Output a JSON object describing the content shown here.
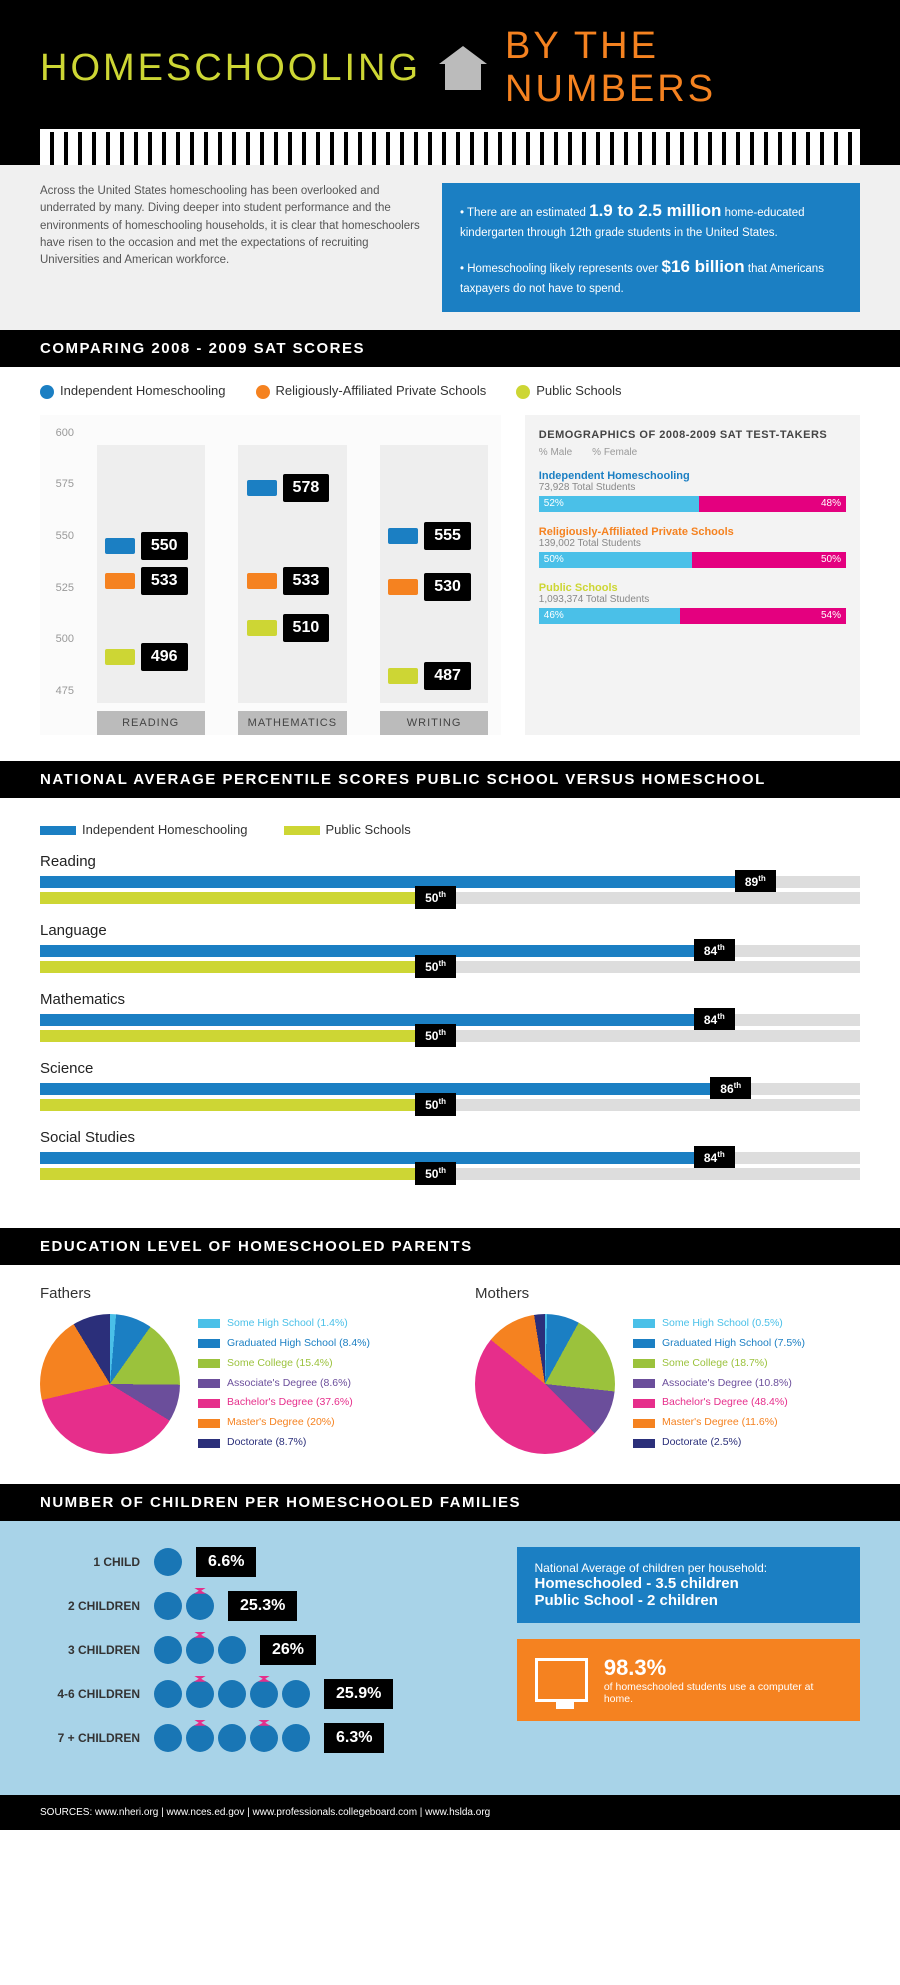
{
  "title": {
    "left": "HOMESCHOOLING",
    "right": "BY THE NUMBERS"
  },
  "intro": {
    "left": "Across the United States homeschooling has been overlooked and underrated by many. Diving deeper into student performance and the environments of homeschooling households, it is clear that homeschoolers have risen to the occasion and met the expectations of recruiting Universities and American workforce.",
    "right1_pre": "• There are an estimated",
    "right1_big": "1.9 to 2.5 million",
    "right1_post": "home-educated kindergarten through 12th grade students in the United States.",
    "right2_pre": "• Homeschooling likely represents over",
    "right2_big": "$16 billion",
    "right2_post": "that Americans taxpayers do not have to spend."
  },
  "sat": {
    "header": "COMPARING 2008 - 2009 SAT SCORES",
    "series": [
      {
        "name": "Independent Homeschooling",
        "color": "#1b7fc3"
      },
      {
        "name": "Religiously-Affiliated Private Schools",
        "color": "#f58220"
      },
      {
        "name": "Public Schools",
        "color": "#cdd634"
      }
    ],
    "ymin": 475,
    "ymax": 600,
    "ystep": 25,
    "cats": [
      "READING",
      "MATHEMATICS",
      "WRITING"
    ],
    "data": [
      [
        550,
        533,
        496
      ],
      [
        578,
        533,
        510
      ],
      [
        555,
        530,
        487
      ]
    ]
  },
  "demo": {
    "header": "DEMOGRAPHICS OF 2008-2009 SAT TEST-TAKERS",
    "sub": [
      "% Male",
      "% Female"
    ],
    "groups": [
      {
        "name": "Independent Homeschooling",
        "color": "#1b7fc3",
        "total": "73,928 Total Students",
        "m": 52,
        "f": 48
      },
      {
        "name": "Religiously-Affiliated Private Schools",
        "color": "#f58220",
        "total": "139,002 Total Students",
        "m": 50,
        "f": 50
      },
      {
        "name": "Public Schools",
        "color": "#cdd634",
        "total": "1,093,374 Total Students",
        "m": 46,
        "f": 54
      }
    ]
  },
  "pct": {
    "header": "NATIONAL AVERAGE PERCENTILE SCORES PUBLIC SCHOOL VERSUS HOMESCHOOL",
    "series": [
      {
        "name": "Independent Homeschooling",
        "color": "#1b7fc3"
      },
      {
        "name": "Public Schools",
        "color": "#cdd634"
      }
    ],
    "rows": [
      {
        "label": "Reading",
        "hs": 89,
        "ps": 50
      },
      {
        "label": "Language",
        "hs": 84,
        "ps": 50
      },
      {
        "label": "Mathematics",
        "hs": 84,
        "ps": 50
      },
      {
        "label": "Science",
        "hs": 86,
        "ps": 50
      },
      {
        "label": "Social Studies",
        "hs": 84,
        "ps": 50
      }
    ]
  },
  "edu": {
    "header": "EDUCATION LEVEL OF HOMESCHOOLED PARENTS",
    "colors": [
      "#4ac0e8",
      "#1b7fc3",
      "#9bc23c",
      "#6b4e9b",
      "#e62e8b",
      "#f58220",
      "#2b2f7a"
    ],
    "labels": [
      "Some High School",
      "Graduated High School",
      "Some College",
      "Associate's Degree",
      "Bachelor's Degree",
      "Master's Degree",
      "Doctorate"
    ],
    "fathers": {
      "title": "Fathers",
      "values": [
        1.4,
        8.4,
        15.4,
        8.6,
        37.6,
        20,
        8.7
      ]
    },
    "mothers": {
      "title": "Mothers",
      "values": [
        0.5,
        7.5,
        18.7,
        10.8,
        48.4,
        11.6,
        2.5
      ]
    }
  },
  "children": {
    "header": "NUMBER OF CHILDREN PER HOMESCHOOLED FAMILIES",
    "rows": [
      {
        "label": "1 CHILD",
        "icons": 1,
        "pct": 6.6
      },
      {
        "label": "2 CHILDREN",
        "icons": 2,
        "pct": 25.3
      },
      {
        "label": "3 CHILDREN",
        "icons": 3,
        "pct": 26
      },
      {
        "label": "4-6 CHILDREN",
        "icons": 5,
        "pct": 25.9
      },
      {
        "label": "7 + CHILDREN",
        "icons": 5,
        "pct": 6.3
      }
    ],
    "avg": {
      "title": "National Average of children per household:",
      "line1": "Homeschooled - 3.5 children",
      "line2": "Public School - 2 children"
    },
    "comp": {
      "pct": "98.3%",
      "txt": "of homeschooled students use a computer at home."
    }
  },
  "footer": "SOURCES:   www.nheri.org   |   www.nces.ed.gov   |   www.professionals.collegeboard.com   |   www.hslda.org"
}
